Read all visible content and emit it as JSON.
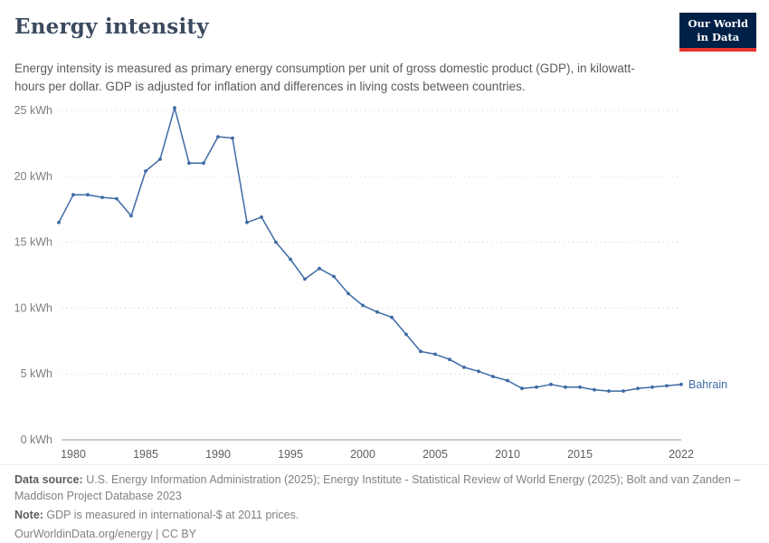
{
  "header": {
    "title": "Energy intensity",
    "subtitle": "Energy intensity is measured as primary energy consumption per unit of gross domestic product (GDP), in kilowatt-hours per dollar. GDP is adjusted for inflation and differences in living costs between countries.",
    "logo": {
      "line1": "Our World",
      "line2": "in Data"
    }
  },
  "chart_data": {
    "type": "line",
    "title": "Energy intensity",
    "unit": "kWh",
    "xlim": [
      1979,
      2022
    ],
    "ylim": [
      0,
      25
    ],
    "yticks": [
      0,
      5,
      10,
      15,
      20,
      25
    ],
    "ytick_suffix": " kWh",
    "xticks": [
      1980,
      1985,
      1990,
      1995,
      2000,
      2005,
      2010,
      2015,
      2022
    ],
    "grid": "horizontal-dotted",
    "legend_position": "end-of-line-label",
    "series": [
      {
        "name": "Bahrain",
        "color": "#3d6aa6",
        "x": [
          1979,
          1980,
          1981,
          1982,
          1983,
          1984,
          1985,
          1986,
          1987,
          1988,
          1989,
          1990,
          1991,
          1992,
          1993,
          1994,
          1995,
          1996,
          1997,
          1998,
          1999,
          2000,
          2001,
          2002,
          2003,
          2004,
          2005,
          2006,
          2007,
          2008,
          2009,
          2010,
          2011,
          2012,
          2013,
          2014,
          2015,
          2016,
          2017,
          2018,
          2019,
          2020,
          2021,
          2022
        ],
        "values": [
          16.5,
          18.6,
          18.6,
          18.4,
          18.3,
          17.0,
          20.4,
          21.3,
          25.2,
          21.0,
          21.0,
          23.0,
          22.9,
          16.5,
          16.9,
          15.0,
          13.7,
          12.2,
          13.0,
          12.4,
          11.1,
          10.2,
          9.7,
          9.3,
          8.0,
          6.7,
          6.5,
          6.1,
          5.5,
          5.2,
          4.8,
          4.5,
          3.9,
          4.0,
          4.2,
          4.0,
          4.0,
          3.8,
          3.7,
          3.7,
          3.9,
          4.0,
          4.1,
          4.2
        ]
      }
    ]
  },
  "footer": {
    "data_source_label": "Data source:",
    "data_source": " U.S. Energy Information Administration (2025); Energy Institute - Statistical Review of World Energy (2025); Bolt and van Zanden – Maddison Project Database 2023",
    "note_label": "Note:",
    "note": " GDP is measured in international-$ at 2011 prices.",
    "license": "OurWorldinData.org/energy | CC BY"
  }
}
